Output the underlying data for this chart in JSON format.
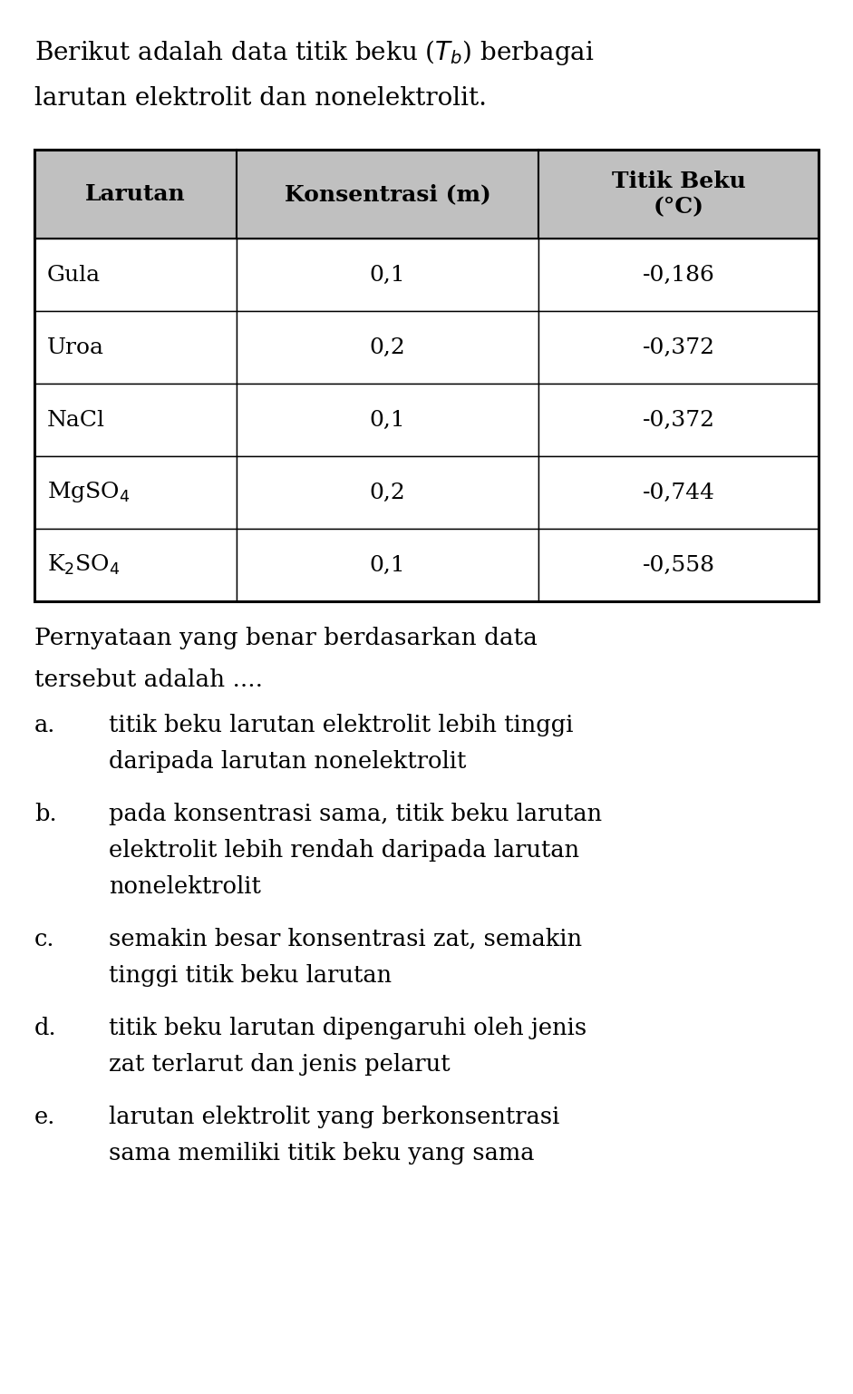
{
  "title_line1": "Berikut adalah data titik beku ($T_b$) berbagai",
  "title_line2": "larutan elektrolit dan nonelektrolit.",
  "col_headers": [
    "Larutan",
    "Konsentrasi (m)",
    "Titik Beku\n(°C)"
  ],
  "rows": [
    [
      "Gula",
      "0,1",
      "-0,186"
    ],
    [
      "Uroa",
      "0,2",
      "-0,372"
    ],
    [
      "NaCl",
      "0,1",
      "-0,372"
    ],
    [
      "MgSO$_4$",
      "0,2",
      "-0,744"
    ],
    [
      "K$_2$SO$_4$",
      "0,1",
      "-0,558"
    ]
  ],
  "question_line1": "Pernyataan yang benar berdasarkan data",
  "question_line2": "tersebut adalah ....",
  "options": [
    [
      "a.",
      "titik beku larutan elektrolit lebih tinggi",
      "daripada larutan nonelektrolit"
    ],
    [
      "b.",
      "pada konsentrasi sama, titik beku larutan",
      "elektrolit lebih rendah daripada larutan",
      "nonelektrolit"
    ],
    [
      "c.",
      "semakin besar konsentrasi zat, semakin",
      "tinggi titik beku larutan"
    ],
    [
      "d.",
      "titik beku larutan dipengaruhi oleh jenis",
      "zat terlarut dan jenis pelarut"
    ],
    [
      "e.",
      "larutan elektrolit yang berkonsentrasi",
      "sama memiliki titik beku yang sama"
    ]
  ],
  "header_bg": "#c0c0c0",
  "table_border": "#000000",
  "text_color": "#000000",
  "bg_color": "#ffffff",
  "title_fontsize": 20,
  "header_fontsize": 18,
  "cell_fontsize": 18,
  "question_fontsize": 19,
  "option_fontsize": 18.5,
  "fig_width": 9.41,
  "fig_height": 15.37,
  "dpi": 100
}
